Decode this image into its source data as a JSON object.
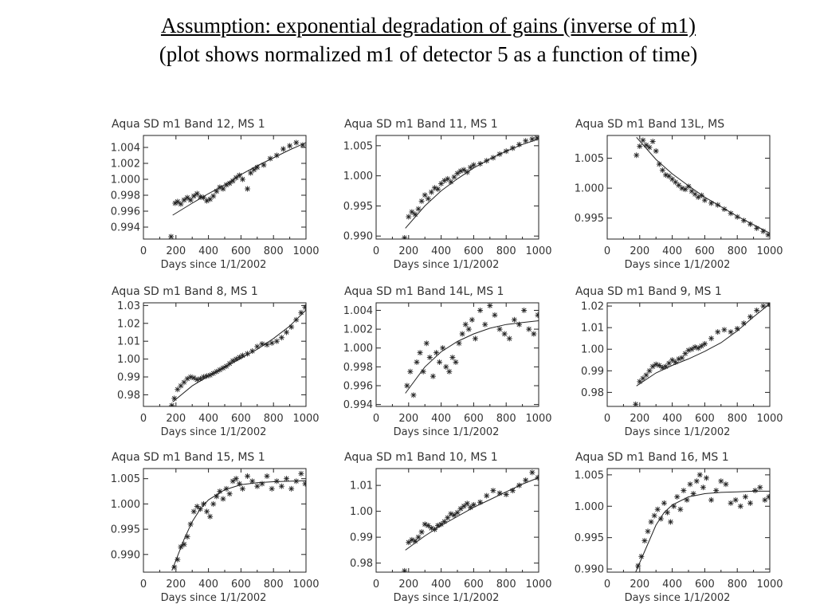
{
  "slide": {
    "title_line1": "Assumption: exponential degradation of gains (inverse of m1)",
    "title_line2": "(plot shows normalized m1 of detector 5 as a function of time)"
  },
  "chart_data": [
    {
      "type": "scatter",
      "title": "Aqua SD m1 Band  12, MS 1",
      "xlabel": "Days since 1/1/2002",
      "xlim": [
        0,
        1000
      ],
      "ylim": [
        0.9925,
        1.0055
      ],
      "xticks": [
        0,
        200,
        400,
        600,
        800,
        1000
      ],
      "yticks": [
        0.994,
        0.996,
        0.998,
        1.0,
        1.002,
        1.004
      ],
      "ytick_labels": [
        "0.994",
        "0.996",
        "0.998",
        "1.000",
        "1.002",
        "1.004"
      ],
      "fit_line": {
        "x": [
          180,
          300,
          400,
          500,
          600,
          700,
          800,
          900,
          1000
        ],
        "y": [
          0.9955,
          0.997,
          0.9982,
          0.9993,
          1.0006,
          1.0017,
          1.0027,
          1.0037,
          1.0046
        ]
      },
      "points": {
        "x": [
          170,
          195,
          210,
          230,
          250,
          270,
          290,
          310,
          330,
          350,
          370,
          390,
          410,
          430,
          450,
          470,
          490,
          510,
          530,
          550,
          570,
          590,
          610,
          640,
          660,
          680,
          700,
          740,
          780,
          820,
          860,
          900,
          940,
          980
        ],
        "y": [
          0.9928,
          0.997,
          0.9972,
          0.9969,
          0.9974,
          0.9977,
          0.9974,
          0.9979,
          0.9982,
          0.9978,
          0.9977,
          0.9973,
          0.9975,
          0.9979,
          0.9985,
          0.999,
          0.9988,
          0.9993,
          0.9995,
          0.9998,
          1.0002,
          1.0005,
          1.0,
          0.9988,
          1.0008,
          1.0012,
          1.0015,
          1.0018,
          1.0026,
          1.003,
          1.0038,
          1.0042,
          1.0046,
          1.0043
        ]
      }
    },
    {
      "type": "scatter",
      "title": "Aqua SD m1 Band  11, MS 1",
      "xlabel": "Days since 1/1/2002",
      "xlim": [
        0,
        1000
      ],
      "ylim": [
        0.9895,
        1.0067
      ],
      "xticks": [
        0,
        200,
        400,
        600,
        800,
        1000
      ],
      "yticks": [
        0.99,
        0.995,
        1.0,
        1.005
      ],
      "ytick_labels": [
        "0.990",
        "0.995",
        "1.000",
        "1.005"
      ],
      "fit_line": {
        "x": [
          180,
          300,
          400,
          500,
          600,
          700,
          800,
          900,
          1000
        ],
        "y": [
          0.9913,
          0.995,
          0.9975,
          0.9995,
          1.0013,
          1.0028,
          1.0041,
          1.0052,
          1.0061
        ]
      },
      "points": {
        "x": [
          175,
          200,
          220,
          240,
          260,
          280,
          300,
          320,
          340,
          360,
          380,
          400,
          420,
          440,
          460,
          480,
          500,
          520,
          540,
          560,
          580,
          600,
          640,
          680,
          720,
          760,
          800,
          840,
          880,
          920,
          960,
          990
        ],
        "y": [
          0.9897,
          0.9932,
          0.994,
          0.9936,
          0.9945,
          0.9958,
          0.9968,
          0.9962,
          0.9973,
          0.998,
          0.9978,
          0.9987,
          0.9992,
          0.9995,
          0.999,
          0.9998,
          1.0004,
          1.0008,
          1.001,
          1.0006,
          1.0014,
          1.0018,
          1.002,
          1.0025,
          1.003,
          1.0036,
          1.0041,
          1.0046,
          1.0052,
          1.0058,
          1.0061,
          1.0063
        ]
      }
    },
    {
      "type": "scatter",
      "title": "Aqua SD m1 Band 13L, MS",
      "xlabel": "Days since 1/1/2002",
      "xlim": [
        0,
        1000
      ],
      "ylim": [
        0.9915,
        1.0088
      ],
      "xticks": [
        0,
        200,
        400,
        600,
        800,
        1000
      ],
      "yticks": [
        0.995,
        1.0,
        1.005
      ],
      "ytick_labels": [
        "0.995",
        "1.000",
        "1.005"
      ],
      "fit_line": {
        "x": [
          180,
          300,
          400,
          500,
          600,
          700,
          800,
          900,
          1000
        ],
        "y": [
          1.0085,
          1.0048,
          1.0024,
          1.0004,
          0.9985,
          0.9969,
          0.9953,
          0.9939,
          0.9925
        ]
      },
      "points": {
        "x": [
          180,
          200,
          220,
          240,
          260,
          280,
          300,
          320,
          340,
          360,
          380,
          400,
          420,
          440,
          460,
          480,
          500,
          520,
          540,
          560,
          580,
          600,
          640,
          680,
          720,
          760,
          800,
          840,
          880,
          920,
          960,
          990
        ],
        "y": [
          1.0055,
          1.007,
          1.008,
          1.0072,
          1.0068,
          1.0078,
          1.0062,
          1.004,
          1.003,
          1.0022,
          1.002,
          1.0015,
          1.001,
          1.0005,
          1.0,
          0.9998,
          1.0003,
          0.9995,
          0.999,
          0.9985,
          0.9988,
          0.998,
          0.9975,
          0.9972,
          0.9965,
          0.9958,
          0.9952,
          0.9946,
          0.994,
          0.9933,
          0.9928,
          0.9922
        ]
      }
    },
    {
      "type": "scatter",
      "title": "Aqua SD m1 Band   8, MS 1",
      "xlabel": "Days since 1/1/2002",
      "xlim": [
        0,
        1000
      ],
      "ylim": [
        0.9735,
        1.0315
      ],
      "xticks": [
        0,
        200,
        400,
        600,
        800,
        1000
      ],
      "yticks": [
        0.98,
        0.99,
        1.0,
        1.01,
        1.02,
        1.03
      ],
      "ytick_labels": [
        "0.98",
        "0.99",
        "1.00",
        "1.01",
        "1.02",
        "1.03"
      ],
      "fit_line": {
        "x": [
          180,
          300,
          400,
          500,
          600,
          700,
          800,
          900,
          1000
        ],
        "y": [
          0.976,
          0.985,
          0.9905,
          0.9955,
          1.0005,
          1.0055,
          1.0115,
          1.0185,
          1.0275
        ]
      },
      "points": {
        "x": [
          175,
          190,
          210,
          230,
          250,
          270,
          290,
          310,
          330,
          350,
          370,
          390,
          410,
          430,
          450,
          470,
          490,
          510,
          530,
          550,
          570,
          590,
          610,
          640,
          670,
          700,
          730,
          760,
          790,
          820,
          850,
          880,
          910,
          940,
          970,
          995
        ],
        "y": [
          0.974,
          0.978,
          0.983,
          0.985,
          0.987,
          0.989,
          0.99,
          0.9895,
          0.9885,
          0.989,
          0.99,
          0.9905,
          0.991,
          0.992,
          0.993,
          0.994,
          0.995,
          0.996,
          0.9975,
          0.999,
          1.0,
          1.001,
          1.002,
          1.003,
          1.0045,
          1.007,
          1.0085,
          1.008,
          1.009,
          1.01,
          1.012,
          1.015,
          1.018,
          1.022,
          1.026,
          1.029
        ]
      }
    },
    {
      "type": "scatter",
      "title": "Aqua SD m1 Band 14L, MS 1",
      "xlabel": "Days since 1/1/2002",
      "xlim": [
        0,
        1000
      ],
      "ylim": [
        0.9938,
        1.0048
      ],
      "xticks": [
        0,
        200,
        400,
        600,
        800,
        1000
      ],
      "yticks": [
        0.994,
        0.996,
        0.998,
        1.0,
        1.002,
        1.004
      ],
      "ytick_labels": [
        "0.994",
        "0.996",
        "0.998",
        "1.000",
        "1.002",
        "1.004"
      ],
      "fit_line": {
        "x": [
          180,
          300,
          400,
          500,
          600,
          700,
          800,
          900,
          1000
        ],
        "y": [
          0.9952,
          0.998,
          0.9996,
          1.0007,
          1.0015,
          1.0021,
          1.0025,
          1.0027,
          1.0029
        ]
      },
      "points": {
        "x": [
          190,
          210,
          230,
          250,
          270,
          290,
          310,
          330,
          350,
          370,
          390,
          410,
          430,
          450,
          470,
          490,
          510,
          530,
          550,
          570,
          590,
          610,
          640,
          670,
          700,
          730,
          760,
          790,
          820,
          850,
          880,
          910,
          940,
          970,
          995
        ],
        "y": [
          0.996,
          0.9975,
          0.995,
          0.9985,
          0.9995,
          0.9975,
          1.0005,
          0.999,
          0.997,
          0.9995,
          0.9985,
          1.0,
          0.998,
          0.9975,
          0.999,
          0.9985,
          1.0005,
          1.0015,
          1.0025,
          1.002,
          1.003,
          1.001,
          1.004,
          1.0025,
          1.0045,
          1.0035,
          1.002,
          1.0015,
          1.001,
          1.003,
          1.0025,
          1.004,
          1.002,
          1.0015,
          1.0035
        ]
      }
    },
    {
      "type": "scatter",
      "title": "Aqua SD m1 Band   9, MS 1",
      "xlabel": "Days since 1/1/2002",
      "xlim": [
        0,
        1000
      ],
      "ylim": [
        0.9735,
        1.0215
      ],
      "xticks": [
        0,
        200,
        400,
        600,
        800,
        1000
      ],
      "yticks": [
        0.98,
        0.99,
        1.0,
        1.01,
        1.02
      ],
      "ytick_labels": [
        "0.98",
        "0.99",
        "1.00",
        "1.01",
        "1.02"
      ],
      "fit_line": {
        "x": [
          180,
          300,
          400,
          500,
          600,
          700,
          800,
          900,
          1000
        ],
        "y": [
          0.983,
          0.989,
          0.9925,
          0.9955,
          0.999,
          1.003,
          1.0085,
          1.015,
          1.021
        ]
      },
      "points": {
        "x": [
          175,
          200,
          220,
          240,
          260,
          280,
          300,
          320,
          340,
          360,
          380,
          400,
          420,
          440,
          460,
          480,
          500,
          520,
          540,
          560,
          580,
          600,
          640,
          680,
          720,
          760,
          800,
          840,
          880,
          920,
          960,
          995
        ],
        "y": [
          0.9745,
          0.985,
          0.9865,
          0.988,
          0.99,
          0.992,
          0.993,
          0.9925,
          0.9915,
          0.992,
          0.9935,
          0.995,
          0.994,
          0.9955,
          0.996,
          0.998,
          0.9995,
          1.0,
          1.001,
          1.0005,
          1.0015,
          1.0025,
          1.005,
          1.008,
          1.009,
          1.008,
          1.0095,
          1.012,
          1.015,
          1.018,
          1.02,
          1.021
        ]
      }
    },
    {
      "type": "scatter",
      "title": "Aqua SD m1 Band 15, MS 1",
      "xlabel": "Days since 1/1/2002",
      "xlim": [
        0,
        1000
      ],
      "ylim": [
        0.9865,
        1.007
      ],
      "xticks": [
        0,
        200,
        400,
        600,
        800,
        1000
      ],
      "yticks": [
        0.99,
        0.995,
        1.0,
        1.005
      ],
      "ytick_labels": [
        "0.990",
        "0.995",
        "1.000",
        "1.005"
      ],
      "fit_line": {
        "x": [
          175,
          250,
          300,
          350,
          400,
          500,
          600,
          700,
          800,
          900,
          1000
        ],
        "y": [
          0.9868,
          0.993,
          0.9965,
          0.999,
          1.0008,
          1.0028,
          1.0038,
          1.0042,
          1.0044,
          1.0045,
          1.0046
        ]
      },
      "points": {
        "x": [
          190,
          210,
          230,
          250,
          270,
          290,
          310,
          330,
          350,
          370,
          390,
          410,
          430,
          450,
          470,
          490,
          510,
          530,
          550,
          570,
          590,
          610,
          640,
          670,
          700,
          730,
          760,
          790,
          820,
          850,
          880,
          910,
          940,
          970,
          995
        ],
        "y": [
          0.9875,
          0.989,
          0.9915,
          0.992,
          0.9935,
          0.996,
          0.9985,
          0.9995,
          0.999,
          1.0,
          0.9985,
          0.9975,
          1.0,
          1.0015,
          1.0025,
          1.001,
          1.003,
          1.002,
          1.0045,
          1.005,
          1.004,
          1.003,
          1.0055,
          1.0045,
          1.0035,
          1.004,
          1.0055,
          1.003,
          1.0045,
          1.0035,
          1.005,
          1.003,
          1.0045,
          1.006,
          1.004
        ]
      }
    },
    {
      "type": "scatter",
      "title": "Aqua SD m1 Band  10, MS 1",
      "xlabel": "Days since 1/1/2002",
      "xlim": [
        0,
        1000
      ],
      "ylim": [
        0.9765,
        1.0165
      ],
      "xticks": [
        0,
        200,
        400,
        600,
        800,
        1000
      ],
      "yticks": [
        0.98,
        0.99,
        1.0,
        1.01
      ],
      "ytick_labels": [
        "0.98",
        "0.99",
        "1.00",
        "1.01"
      ],
      "fit_line": {
        "x": [
          180,
          300,
          400,
          500,
          600,
          700,
          800,
          900,
          1000
        ],
        "y": [
          0.985,
          0.9905,
          0.9945,
          0.998,
          1.0015,
          1.0045,
          1.0075,
          1.0105,
          1.013
        ]
      },
      "points": {
        "x": [
          175,
          200,
          220,
          240,
          260,
          280,
          300,
          320,
          340,
          360,
          380,
          400,
          420,
          440,
          460,
          480,
          500,
          520,
          540,
          560,
          580,
          600,
          640,
          680,
          720,
          760,
          800,
          840,
          880,
          920,
          960,
          995
        ],
        "y": [
          0.977,
          0.988,
          0.989,
          0.9885,
          0.99,
          0.992,
          0.995,
          0.9945,
          0.9935,
          0.993,
          0.9945,
          0.995,
          0.996,
          0.9975,
          0.999,
          0.9985,
          0.9995,
          1.001,
          1.002,
          1.003,
          1.0015,
          1.0025,
          1.0035,
          1.006,
          1.008,
          1.007,
          1.0065,
          1.008,
          1.01,
          1.012,
          1.015,
          1.013
        ]
      }
    },
    {
      "type": "scatter",
      "title": "Aqua SD m1 Band 16, MS 1",
      "xlabel": "Days since 1/1/2002",
      "xlim": [
        0,
        1000
      ],
      "ylim": [
        0.9895,
        1.006
      ],
      "xticks": [
        0,
        200,
        400,
        600,
        800,
        1000
      ],
      "yticks": [
        0.99,
        0.995,
        1.0,
        1.005
      ],
      "ytick_labels": [
        "0.990",
        "0.995",
        "1.000",
        "1.005"
      ],
      "fit_line": {
        "x": [
          175,
          250,
          300,
          350,
          400,
          500,
          600,
          700,
          800,
          900,
          1000
        ],
        "y": [
          0.9895,
          0.994,
          0.997,
          0.999,
          1.0002,
          1.0015,
          1.002,
          1.0022,
          1.0023,
          1.0024,
          1.0024
        ]
      },
      "points": {
        "x": [
          190,
          210,
          230,
          250,
          270,
          290,
          310,
          330,
          350,
          370,
          390,
          410,
          430,
          450,
          470,
          490,
          510,
          530,
          550,
          570,
          590,
          610,
          640,
          670,
          700,
          730,
          760,
          790,
          820,
          850,
          880,
          910,
          940,
          970,
          995
        ],
        "y": [
          0.9905,
          0.992,
          0.9945,
          0.996,
          0.9975,
          0.9985,
          0.9995,
          0.998,
          1.0005,
          0.999,
          0.9975,
          1.0,
          1.0015,
          0.9995,
          1.0025,
          1.001,
          1.0035,
          1.002,
          1.004,
          1.005,
          1.003,
          1.0045,
          1.001,
          1.0025,
          1.004,
          1.0035,
          1.0005,
          1.001,
          1.0,
          1.0015,
          1.0005,
          1.0025,
          1.003,
          1.001,
          1.0015
        ]
      }
    }
  ]
}
